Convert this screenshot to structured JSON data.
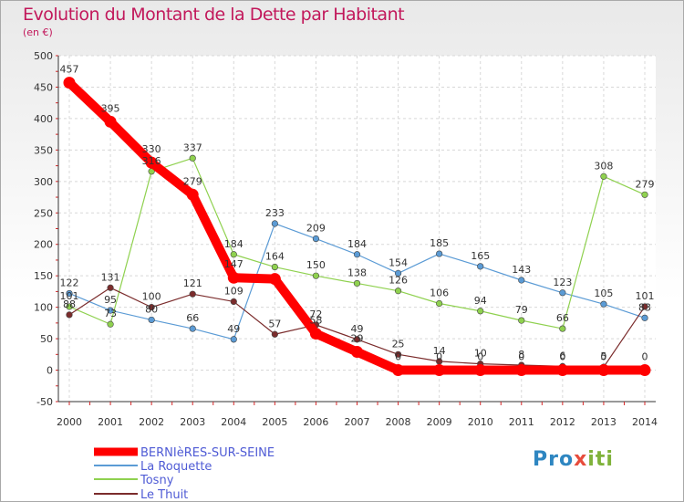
{
  "title": "Evolution du Montant de la Dette par Habitant",
  "subtitle": "(en €)",
  "logo": {
    "parts": [
      "Pro",
      "x",
      "iti"
    ],
    "colors": [
      "#2e86c1",
      "#e74c3c",
      "#7fb23a"
    ]
  },
  "chart_data": {
    "type": "line",
    "x": [
      "2000",
      "2001",
      "2002",
      "2003",
      "2004",
      "2005",
      "2006",
      "2007",
      "2008",
      "2009",
      "2010",
      "2011",
      "2012",
      "2013",
      "2014"
    ],
    "ylim": [
      -50,
      500
    ],
    "yticks": [
      -50,
      0,
      50,
      100,
      150,
      200,
      250,
      300,
      350,
      400,
      450,
      500
    ],
    "grid": true,
    "legend_position": "bottom-left",
    "series": [
      {
        "name": "BERNIèRES-SUR-SEINE",
        "color": "#ff0000",
        "values": [
          457,
          395,
          330,
          279,
          147,
          145,
          58,
          29,
          0,
          0,
          0,
          0,
          0,
          0,
          0
        ],
        "labels": [
          "457",
          "395",
          "330",
          "279",
          "147",
          "",
          "58",
          "29",
          "0",
          "0",
          "0",
          "0",
          "0",
          "0",
          "0"
        ]
      },
      {
        "name": "La Roquette",
        "color": "#5b9bd5",
        "values": [
          122,
          95,
          80,
          66,
          49,
          233,
          209,
          184,
          154,
          185,
          165,
          143,
          123,
          105,
          83
        ],
        "labels": [
          "122",
          "95",
          "80",
          "66",
          "49",
          "233",
          "209",
          "184",
          "154",
          "185",
          "165",
          "143",
          "123",
          "105",
          "83"
        ]
      },
      {
        "name": "Tosny",
        "color": "#8fd14f",
        "values": [
          101,
          73,
          316,
          337,
          184,
          164,
          150,
          138,
          126,
          106,
          94,
          79,
          66,
          308,
          279
        ],
        "labels": [
          "101",
          "73",
          "316",
          "337",
          "184",
          "164",
          "150",
          "138",
          "126",
          "106",
          "94",
          "79",
          "66",
          "308",
          "279"
        ]
      },
      {
        "name": "Le Thuit",
        "color": "#7b2c2c",
        "values": [
          88,
          131,
          100,
          121,
          109,
          57,
          72,
          49,
          25,
          14,
          10,
          8,
          6,
          5,
          101
        ],
        "labels": [
          "88",
          "131",
          "100",
          "121",
          "109",
          "57",
          "72",
          "49",
          "25",
          "14",
          "10",
          "8",
          "6",
          "5",
          "101"
        ]
      }
    ]
  }
}
